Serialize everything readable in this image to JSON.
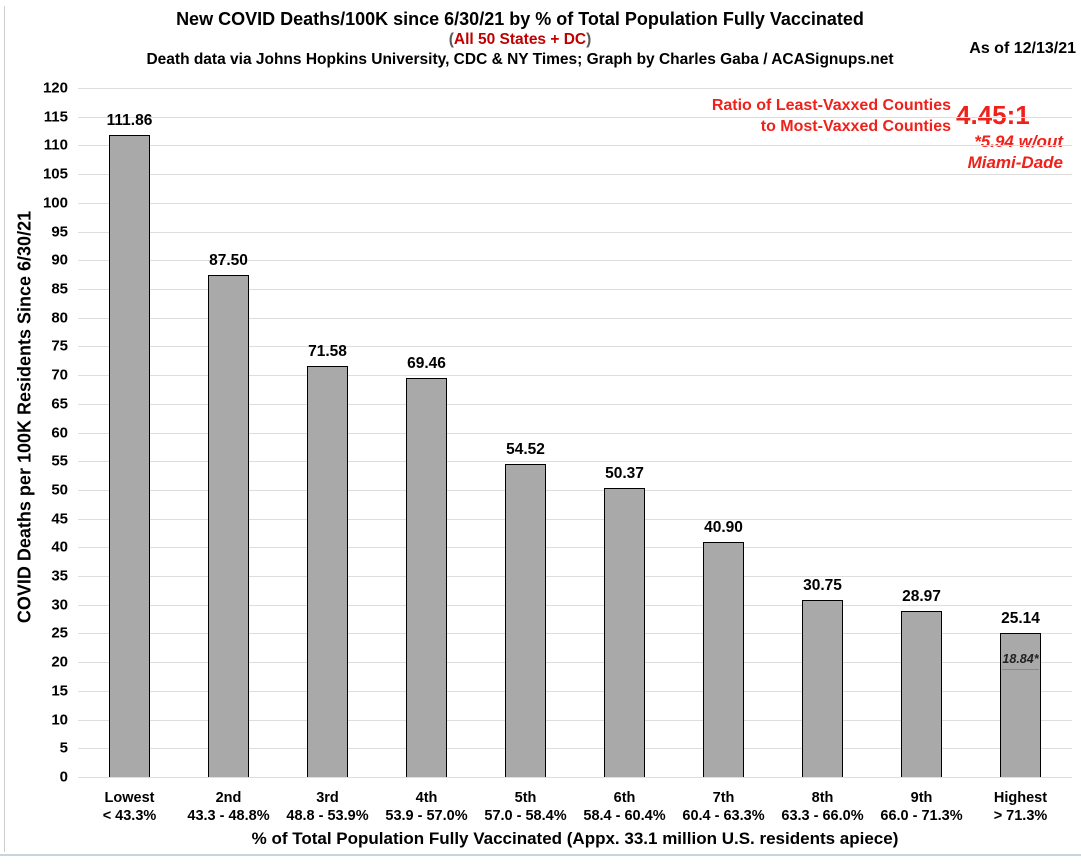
{
  "header": {
    "title": "New COVID Deaths/100K since 6/30/21 by % of Total Population Fully Vaccinated",
    "subtitle_paren_open": "(",
    "subtitle": "All 50 States + DC",
    "subtitle_paren_close": ")",
    "credit": "Death data via Johns Hopkins University, CDC & NY Times; Graph by Charles Gaba / ACASignups.net",
    "as_of": "As of 12/13/21"
  },
  "annotation": {
    "line1": "Ratio of Least-Vaxxed Counties",
    "line2": "to Most-Vaxxed Counties",
    "ratio": "4.45:1",
    "footnote_line1": "*5.94 w/out",
    "footnote_line2": "Miami-Dade"
  },
  "colors": {
    "bar_fill": "#a9a9a9",
    "bar_border": "#000000",
    "gridline": "#dedede",
    "subtitle_red": "#c00000",
    "annotation_red": "#f0201a"
  },
  "chart_data": {
    "type": "bar",
    "title": "New COVID Deaths/100K since 6/30/21 by % of Total Population Fully Vaccinated",
    "subtitle": "All 50 States + DC",
    "as_of": "As of 12/13/21",
    "xlabel": "% of Total Population Fully Vaccinated (Appx. 33.1 million U.S. residents apiece)",
    "ylabel": "COVID Deaths per 100K Residents Since 6/30/21",
    "ylim": [
      0,
      120
    ],
    "ytick_step": 5,
    "grid": true,
    "legend": false,
    "categories": [
      "Lowest",
      "2nd",
      "3rd",
      "4th",
      "5th",
      "6th",
      "7th",
      "8th",
      "9th",
      "Highest"
    ],
    "category_ranges": [
      "< 43.3%",
      "43.3 - 48.8%",
      "48.8 - 53.9%",
      "53.9 - 57.0%",
      "57.0 - 58.4%",
      "58.4 - 60.4%",
      "60.4 - 63.3%",
      "63.3 - 66.0%",
      "66.0 - 71.3%",
      "> 71.3%"
    ],
    "values": [
      111.86,
      87.5,
      71.58,
      69.46,
      54.52,
      50.37,
      40.9,
      30.75,
      28.97,
      25.14
    ],
    "value_labels": [
      "111.86",
      "87.50",
      "71.58",
      "69.46",
      "54.52",
      "50.37",
      "40.90",
      "30.75",
      "28.97",
      "25.14"
    ],
    "inset": {
      "category_index": 9,
      "value": 18.84,
      "label": "18.84*"
    }
  }
}
